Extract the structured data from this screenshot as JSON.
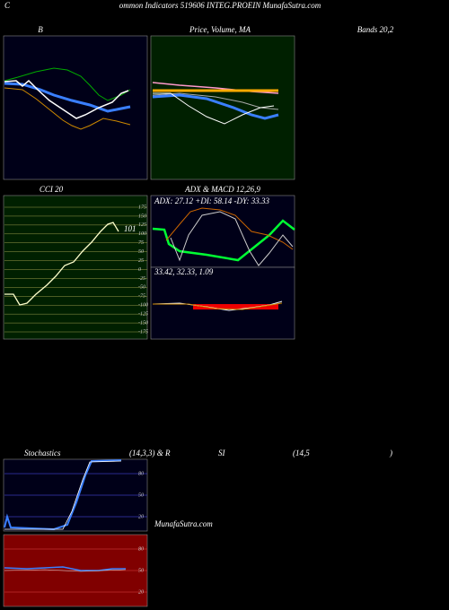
{
  "header": {
    "prefix": "C",
    "title": "ommon Indicators 519606 INTEG.PROEIN MunafaSutra.com"
  },
  "bollinger": {
    "title": "B",
    "right_title": "Bands 20,2"
  },
  "price": {
    "title": "Price, Volume, MA"
  },
  "cci": {
    "title": "CCI 20",
    "ticks": [
      175,
      150,
      125,
      100,
      75,
      50,
      25,
      0,
      -25,
      -50,
      -75,
      -100,
      -125,
      -150,
      -175
    ],
    "last": 101
  },
  "adx": {
    "title": "ADX  & MACD 12,26,9",
    "readout": "ADX: 27.12  +DI: 58.14  -DY: 33.33"
  },
  "macd": {
    "readout": "33.42,  32.33,  1.09"
  },
  "stoch": {
    "title_parts": [
      "Stochastics",
      "(14,3,3) & R",
      "SI",
      "(14,5",
      ")"
    ],
    "ticks": [
      80,
      50,
      20
    ]
  },
  "rsi": {
    "ticks": [
      80,
      50,
      20
    ]
  },
  "watermark": "MunafaSutra.com"
}
